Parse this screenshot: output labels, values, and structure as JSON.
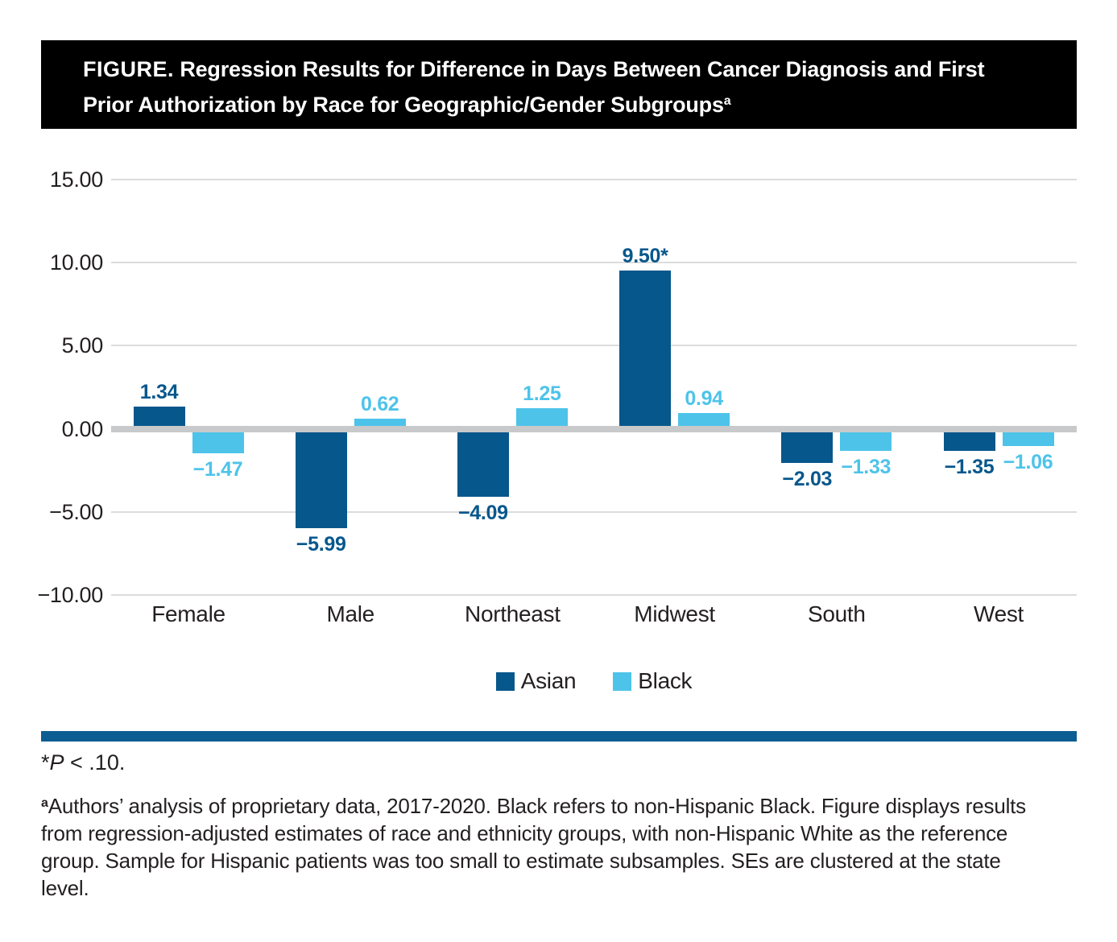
{
  "header": {
    "label": "FIGURE.",
    "title": " Regression Results for Difference in Days Between Cancer Diagnosis and First Prior Authorization by Race for Geographic/Gender Subgroups",
    "superscript": "a"
  },
  "chart_data": {
    "type": "bar",
    "categories": [
      "Female",
      "Male",
      "Northeast",
      "Midwest",
      "South",
      "West"
    ],
    "series": [
      {
        "name": "Asian",
        "color": "#06578C",
        "values": [
          1.34,
          -5.99,
          -4.09,
          9.5,
          -2.03,
          -1.35
        ],
        "labels": [
          "1.34",
          "−5.99",
          "−4.09",
          "9.50*",
          "−2.03",
          "−1.35"
        ]
      },
      {
        "name": "Black",
        "color": "#4DC3EA",
        "values": [
          -1.47,
          0.62,
          1.25,
          0.94,
          -1.33,
          -1.06
        ],
        "labels": [
          "−1.47",
          "0.62",
          "1.25",
          "0.94",
          "−1.33",
          "−1.06"
        ]
      }
    ],
    "ylabel": "",
    "xlabel": "",
    "ylim": [
      -10,
      15
    ],
    "yticks": [
      {
        "value": 15,
        "label": "15.00"
      },
      {
        "value": 10,
        "label": "10.00"
      },
      {
        "value": 5,
        "label": "5.00"
      },
      {
        "value": 0,
        "label": "0.00"
      },
      {
        "value": -5,
        "label": "−5.00"
      },
      {
        "value": -10,
        "label": "−10.00"
      }
    ],
    "grid": true,
    "legend_position": "bottom-center"
  },
  "footnotes": {
    "significance": {
      "star": "*",
      "p": "P",
      "rest": " < .10."
    },
    "note": {
      "marker": "a",
      "text": "Authors’ analysis of proprietary data, 2017-2020. Black refers to non-Hispanic Black. Figure displays results from regression-adjusted estimates of race and ethnicity groups, with non-Hispanic White as the reference group. Sample for Hispanic patients was too small to estimate subsamples. SEs are clustered at the state level."
    }
  },
  "colors": {
    "accent_dark": "#06578C",
    "accent_light": "#4DC3EA",
    "separator": "#0C5D92",
    "grid": "#DCDCDC",
    "zero_line": "#C8C9CA",
    "header_bg": "#000000",
    "text": "#231F20"
  }
}
